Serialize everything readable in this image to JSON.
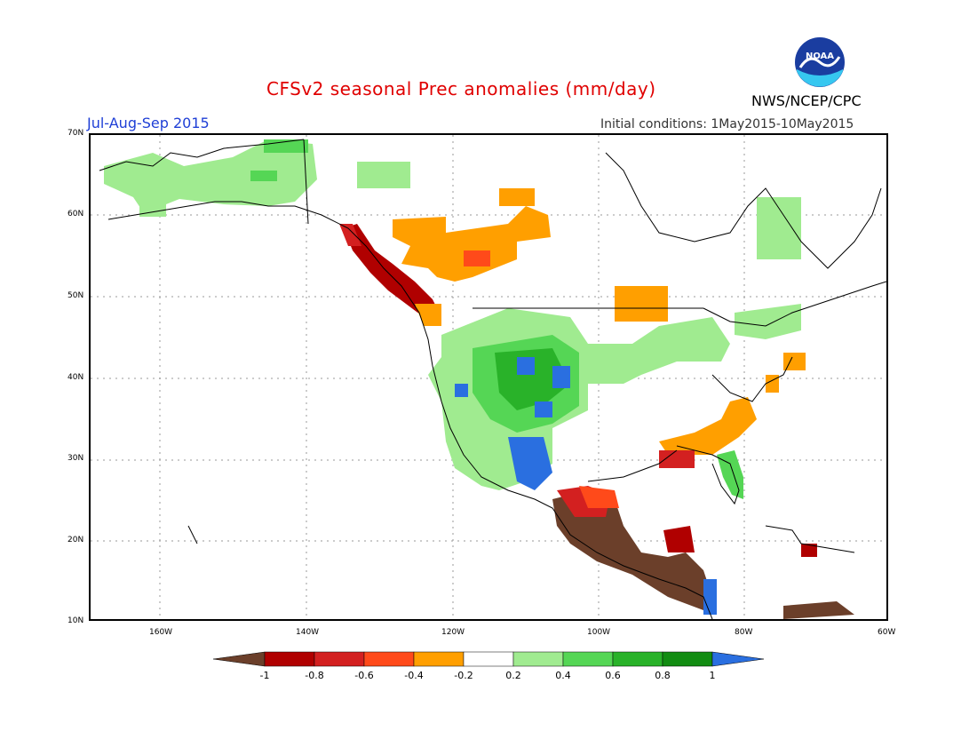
{
  "header": {
    "title": "CFSv2 seasonal Prec anomalies (mm/day)",
    "season": "Jul-Aug-Sep 2015",
    "initial_conditions": "Initial conditions: 1May2015-10May2015",
    "agency": "NWS/NCEP/CPC",
    "logo_text": "NOAA"
  },
  "map": {
    "latitude_labels": [
      "70N",
      "60N",
      "50N",
      "40N",
      "30N",
      "20N",
      "10N"
    ],
    "longitude_labels": [
      "160W",
      "140W",
      "120W",
      "100W",
      "80W",
      "60W"
    ],
    "anomaly_regions": [
      {
        "region": "Alaska",
        "category": "light-green"
      },
      {
        "region": "Western Canada",
        "category": "orange"
      },
      {
        "region": "Pacific Northwest coast",
        "category": "dark-red"
      },
      {
        "region": "US Southwest / Four Corners",
        "category": "green-blue"
      },
      {
        "region": "Northern Plains / Great Lakes",
        "category": "light-green"
      },
      {
        "region": "US Southeast",
        "category": "orange"
      },
      {
        "region": "Florida",
        "category": "green"
      },
      {
        "region": "Mexico / Central America",
        "category": "brown"
      },
      {
        "region": "Hudson Bay / Quebec",
        "category": "light-green"
      }
    ]
  },
  "legend": {
    "labels": [
      "-1",
      "-0.8",
      "-0.6",
      "-0.4",
      "-0.2",
      "0.2",
      "0.4",
      "0.6",
      "0.8",
      "1"
    ],
    "colors": [
      "#6b3f2a",
      "#b00000",
      "#d32020",
      "#ff4a1a",
      "#ff9f00",
      "#ffffff",
      "#a0eb90",
      "#55d655",
      "#29b229",
      "#128c12",
      "#2a6fe0"
    ]
  }
}
